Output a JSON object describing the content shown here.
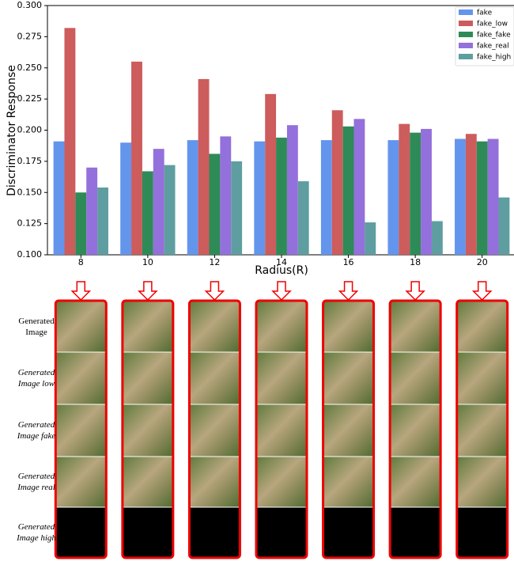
{
  "chart_data": {
    "type": "bar",
    "x_label": "Radius(R)",
    "y_label": "Discriminator Response",
    "categories": [
      "8",
      "10",
      "12",
      "14",
      "16",
      "18",
      "20"
    ],
    "series": [
      {
        "name": "fake",
        "color": "#6495ed",
        "values": [
          0.191,
          0.19,
          0.192,
          0.191,
          0.192,
          0.192,
          0.193
        ]
      },
      {
        "name": "fake_low",
        "color": "#cd5c5c",
        "values": [
          0.282,
          0.255,
          0.241,
          0.229,
          0.216,
          0.205,
          0.197
        ]
      },
      {
        "name": "fake_fake",
        "color": "#2e8b57",
        "values": [
          0.15,
          0.167,
          0.181,
          0.194,
          0.203,
          0.198,
          0.191
        ]
      },
      {
        "name": "fake_real",
        "color": "#9370db",
        "values": [
          0.17,
          0.185,
          0.195,
          0.204,
          0.209,
          0.201,
          0.193
        ]
      },
      {
        "name": "fake_high",
        "color": "#5f9ea0",
        "values": [
          0.154,
          0.172,
          0.175,
          0.159,
          0.126,
          0.127,
          0.146
        ]
      }
    ],
    "ylim": [
      0.1,
      0.3
    ],
    "yticks": [
      {
        "value": 0.1,
        "label": "0.100"
      },
      {
        "value": 0.125,
        "label": "0.125"
      },
      {
        "value": 0.15,
        "label": "0.150"
      },
      {
        "value": 0.175,
        "label": "0.175"
      },
      {
        "value": 0.2,
        "label": "0.200"
      },
      {
        "value": 0.225,
        "label": "0.225"
      },
      {
        "value": 0.25,
        "label": "0.250"
      },
      {
        "value": 0.275,
        "label": "0.275"
      },
      {
        "value": 0.3,
        "label": "0.300"
      }
    ],
    "grid": false,
    "legend": "upper right"
  },
  "image_grid": {
    "row_labels": [
      "Generated Image",
      "Generated Image low",
      "Generated Image fake",
      "Generated Image real",
      "Generated Image high"
    ]
  }
}
